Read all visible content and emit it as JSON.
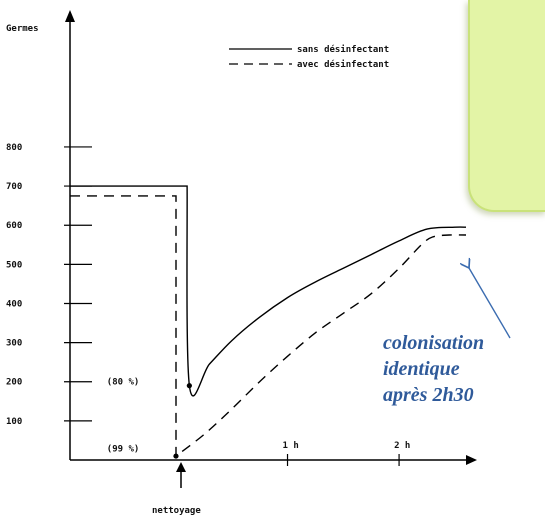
{
  "chart_data": {
    "type": "line",
    "ylabel": "Germes",
    "y_ticks": [
      100,
      200,
      300,
      400,
      500,
      600,
      700,
      800
    ],
    "ylim": [
      0,
      1150
    ],
    "x_ticks": [
      {
        "value": 1,
        "label": "1 h"
      },
      {
        "value": 2,
        "label": "2 h"
      }
    ],
    "xlim": [
      -0.95,
      2.6
    ],
    "x_event": {
      "value": 0,
      "label": "nettoyage"
    },
    "legend_position": "top-right",
    "series": [
      {
        "name": "sans désinfectant",
        "style": "solid",
        "x": [
          -0.95,
          0.1,
          0.1,
          0.12,
          0.3,
          0.5,
          0.75,
          1.0,
          1.25,
          1.5,
          1.75,
          2.0,
          2.25,
          2.5,
          2.6
        ],
        "y": [
          700,
          700,
          700,
          190,
          245,
          305,
          365,
          415,
          455,
          490,
          525,
          560,
          590,
          595,
          595
        ]
      },
      {
        "name": "avec désinfectant",
        "style": "dashed",
        "x": [
          -0.95,
          0.0,
          0.0,
          0.25,
          0.5,
          0.75,
          1.0,
          1.25,
          1.5,
          1.75,
          2.0,
          2.2,
          2.3,
          2.45,
          2.6
        ],
        "y": [
          675,
          675,
          10,
          65,
          130,
          200,
          265,
          325,
          375,
          425,
          490,
          550,
          570,
          575,
          575
        ]
      }
    ],
    "annotations": [
      {
        "text": "(80 %)",
        "x": -0.62,
        "y": 200
      },
      {
        "text": "(99 %)",
        "x": -0.62,
        "y": 30
      }
    ]
  },
  "callout": {
    "lines": [
      "colonisation",
      "identique",
      "après 2h30"
    ],
    "color": "#2f5a9a",
    "note_color": "#e3f4a6"
  }
}
